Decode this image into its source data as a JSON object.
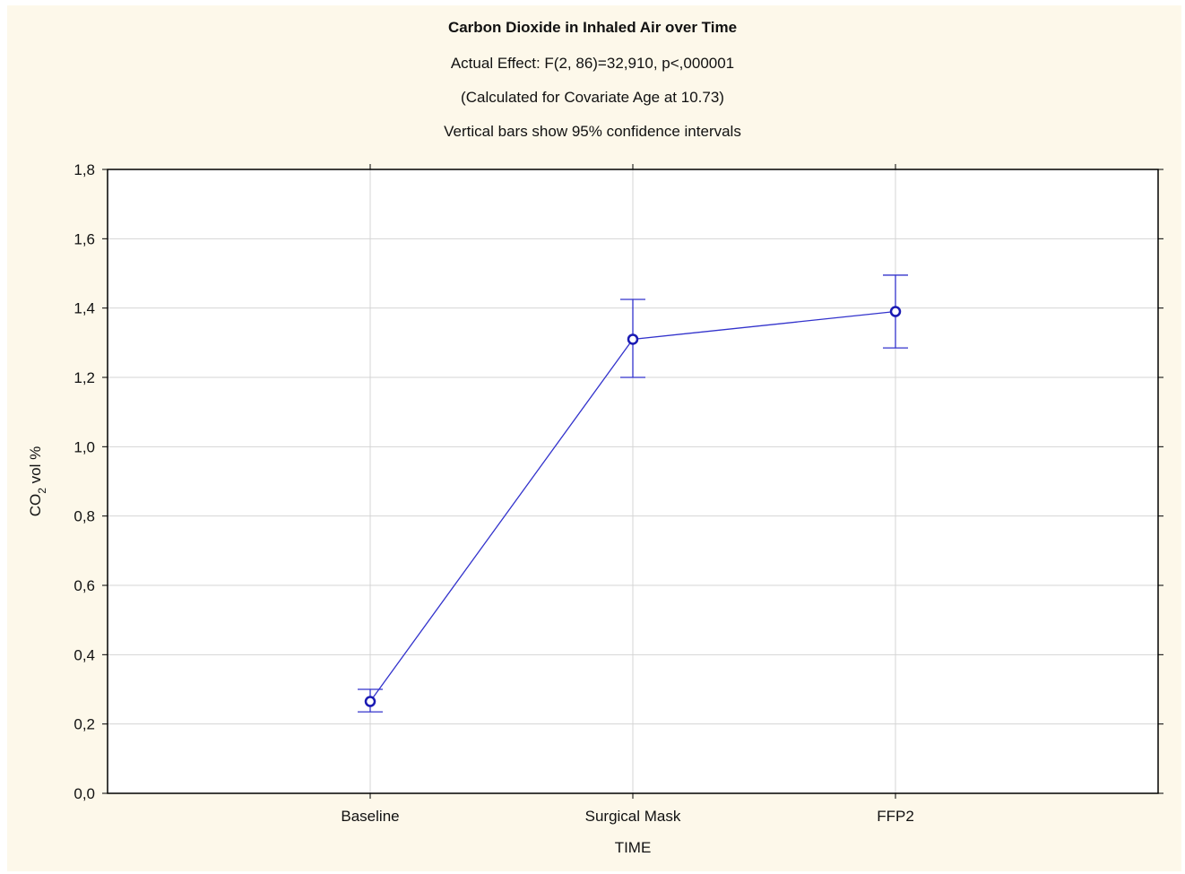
{
  "chart_data": {
    "type": "line",
    "title": "Carbon Dioxide in Inhaled Air over Time",
    "subtitles": [
      "Actual Effect: F(2, 86)=32,910, p<,000001",
      "(Calculated for Covariate Age at 10.73)",
      "Vertical bars show 95% confidence intervals"
    ],
    "xlabel": "TIME",
    "ylabel_main": "CO",
    "ylabel_sub": "2",
    "ylabel_rest": " vol %",
    "categories": [
      "Baseline",
      "Surgical Mask",
      "FFP2"
    ],
    "series": [
      {
        "values": [
          0.265,
          1.31,
          1.39
        ],
        "ci_lower": [
          0.235,
          1.2,
          1.285
        ],
        "ci_upper": [
          0.3,
          1.425,
          1.495
        ]
      }
    ],
    "ylim": [
      0,
      1.8
    ],
    "yticks": [
      "0,0",
      "0,2",
      "0,4",
      "0,6",
      "0,8",
      "1,0",
      "1,2",
      "1,4",
      "1,6",
      "1,8"
    ],
    "grid": true,
    "colors": {
      "series": "#3333cc",
      "background": "#fdf8ea",
      "plot_background": "#ffffff",
      "grid": "#d4d4d4",
      "axis": "#000000"
    }
  }
}
